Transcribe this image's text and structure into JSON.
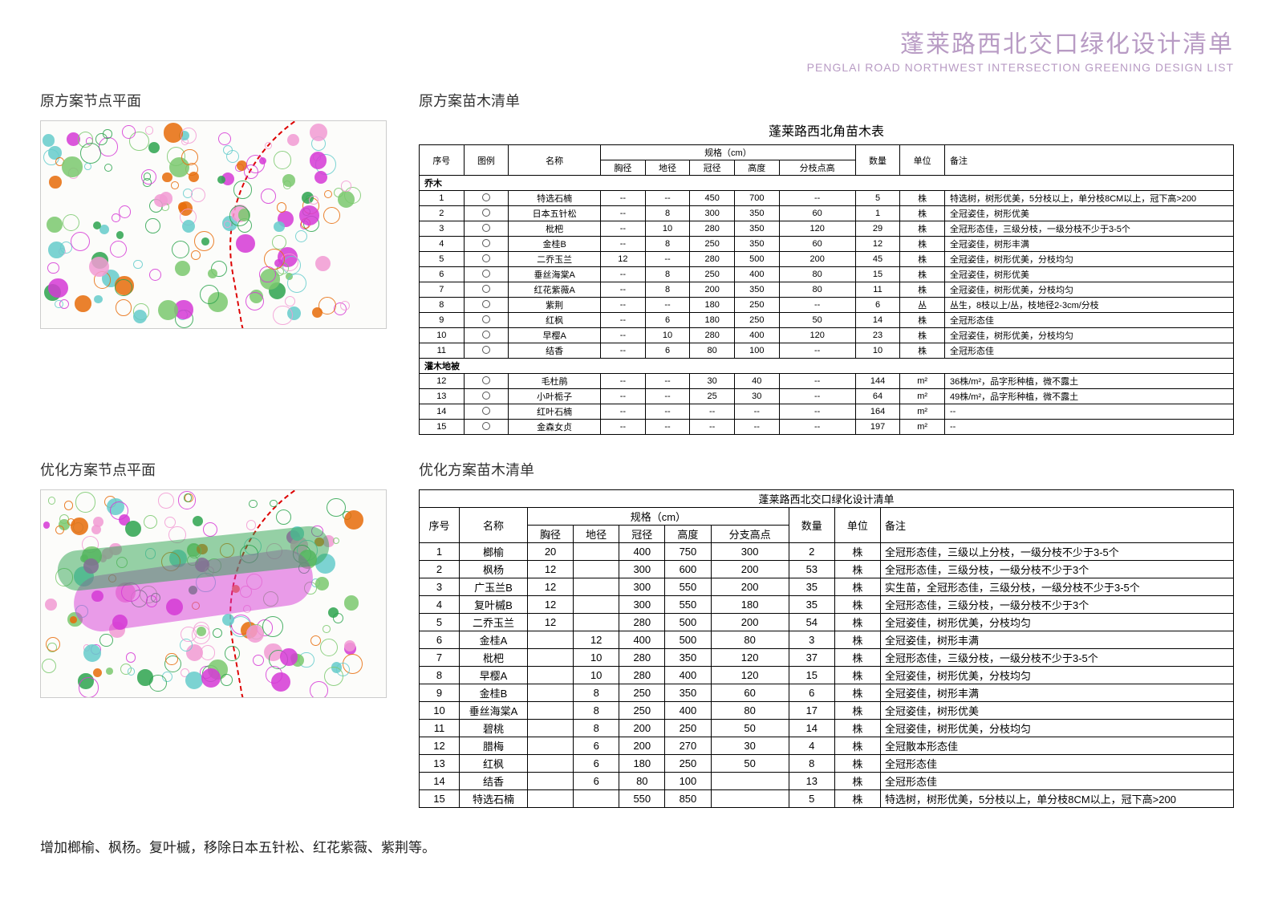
{
  "header": {
    "cn": "蓬莱路西北交口绿化设计清单",
    "en": "PENGLAI ROAD NORTHWEST INTERSECTION GREENING DESIGN LIST"
  },
  "sections": {
    "original_plan_title": "原方案节点平面",
    "original_list_title": "原方案苗木清单",
    "optimized_plan_title": "优化方案节点平面",
    "optimized_list_title": "优化方案苗木清单"
  },
  "table1": {
    "title": "蓬莱路西北角苗木表",
    "columns": {
      "seq": "序号",
      "symbol": "图例",
      "name": "名称",
      "spec_group": "规格（cm）",
      "xj": "胸径",
      "dj": "地径",
      "gj": "冠径",
      "gd": "高度",
      "fz": "分枝点高",
      "qty": "数量",
      "unit": "单位",
      "remarks": "备注"
    },
    "categories": {
      "trees": "乔木",
      "shrubs": "灌木地被"
    },
    "trees": [
      {
        "n": "1",
        "name": "特选石楠",
        "xj": "--",
        "dj": "--",
        "gj": "450",
        "gd": "700",
        "fz": "--",
        "qty": "5",
        "unit": "株",
        "rem": "特选树，树形优美，5分枝以上，单分枝8CM以上，冠下高>200"
      },
      {
        "n": "2",
        "name": "日本五针松",
        "xj": "--",
        "dj": "8",
        "gj": "300",
        "gd": "350",
        "fz": "60",
        "qty": "1",
        "unit": "株",
        "rem": "全冠姿佳，树形优美"
      },
      {
        "n": "3",
        "name": "枇杷",
        "xj": "--",
        "dj": "10",
        "gj": "280",
        "gd": "350",
        "fz": "120",
        "qty": "29",
        "unit": "株",
        "rem": "全冠形态佳，三级分枝，一级分枝不少于3-5个"
      },
      {
        "n": "4",
        "name": "金桂B",
        "xj": "--",
        "dj": "8",
        "gj": "250",
        "gd": "350",
        "fz": "60",
        "qty": "12",
        "unit": "株",
        "rem": "全冠姿佳，树形丰满"
      },
      {
        "n": "5",
        "name": "二乔玉兰",
        "xj": "12",
        "dj": "--",
        "gj": "280",
        "gd": "500",
        "fz": "200",
        "qty": "45",
        "unit": "株",
        "rem": "全冠姿佳，树形优美，分枝均匀"
      },
      {
        "n": "6",
        "name": "垂丝海棠A",
        "xj": "--",
        "dj": "8",
        "gj": "250",
        "gd": "400",
        "fz": "80",
        "qty": "15",
        "unit": "株",
        "rem": "全冠姿佳，树形优美"
      },
      {
        "n": "7",
        "name": "红花紫薇A",
        "xj": "--",
        "dj": "8",
        "gj": "200",
        "gd": "350",
        "fz": "80",
        "qty": "11",
        "unit": "株",
        "rem": "全冠姿佳，树形优美，分枝均匀"
      },
      {
        "n": "8",
        "name": "紫荆",
        "xj": "--",
        "dj": "--",
        "gj": "180",
        "gd": "250",
        "fz": "--",
        "qty": "6",
        "unit": "丛",
        "rem": "丛生，8枝以上/丛，枝地径2-3cm/分枝"
      },
      {
        "n": "9",
        "name": "红枫",
        "xj": "--",
        "dj": "6",
        "gj": "180",
        "gd": "250",
        "fz": "50",
        "qty": "14",
        "unit": "株",
        "rem": "全冠形态佳"
      },
      {
        "n": "10",
        "name": "早樱A",
        "xj": "--",
        "dj": "10",
        "gj": "280",
        "gd": "400",
        "fz": "120",
        "qty": "23",
        "unit": "株",
        "rem": "全冠姿佳，树形优美，分枝均匀"
      },
      {
        "n": "11",
        "name": "结香",
        "xj": "--",
        "dj": "6",
        "gj": "80",
        "gd": "100",
        "fz": "--",
        "qty": "10",
        "unit": "株",
        "rem": "全冠形态佳"
      }
    ],
    "shrubs": [
      {
        "n": "12",
        "name": "毛杜鹃",
        "xj": "--",
        "dj": "--",
        "gj": "30",
        "gd": "40",
        "fz": "--",
        "qty": "144",
        "unit": "m²",
        "rem": "36株/m²，品字形种植，微不露土"
      },
      {
        "n": "13",
        "name": "小叶栀子",
        "xj": "--",
        "dj": "--",
        "gj": "25",
        "gd": "30",
        "fz": "--",
        "qty": "64",
        "unit": "m²",
        "rem": "49株/m²，品字形种植，微不露土"
      },
      {
        "n": "14",
        "name": "红叶石楠",
        "xj": "--",
        "dj": "--",
        "gj": "--",
        "gd": "--",
        "fz": "--",
        "qty": "164",
        "unit": "m²",
        "rem": "--"
      },
      {
        "n": "15",
        "name": "金森女贞",
        "xj": "--",
        "dj": "--",
        "gj": "--",
        "gd": "--",
        "fz": "--",
        "qty": "197",
        "unit": "m²",
        "rem": "--"
      }
    ]
  },
  "table2": {
    "title": "蓬莱路西北交口绿化设计清单",
    "columns": {
      "seq": "序号",
      "name": "名称",
      "spec_group": "规格（cm）",
      "xj": "胸径",
      "dj": "地径",
      "gj": "冠径",
      "gd": "高度",
      "fz": "分支高点",
      "qty": "数量",
      "unit": "单位",
      "remarks": "备注"
    },
    "rows": [
      {
        "n": "1",
        "name": "榔榆",
        "xj": "20",
        "dj": "",
        "gj": "400",
        "gd": "750",
        "fz": "300",
        "qty": "2",
        "unit": "株",
        "rem": "全冠形态佳，三级以上分枝，一级分枝不少于3-5个"
      },
      {
        "n": "2",
        "name": "枫杨",
        "xj": "12",
        "dj": "",
        "gj": "300",
        "gd": "600",
        "fz": "200",
        "qty": "53",
        "unit": "株",
        "rem": "全冠形态佳，三级分枝，一级分枝不少于3个"
      },
      {
        "n": "3",
        "name": "广玉兰B",
        "xj": "12",
        "dj": "",
        "gj": "300",
        "gd": "550",
        "fz": "200",
        "qty": "35",
        "unit": "株",
        "rem": "实生苗，全冠形态佳，三级分枝，一级分枝不少于3-5个"
      },
      {
        "n": "4",
        "name": "复叶槭B",
        "xj": "12",
        "dj": "",
        "gj": "300",
        "gd": "550",
        "fz": "180",
        "qty": "35",
        "unit": "株",
        "rem": "全冠形态佳，三级分枝，一级分枝不少于3个"
      },
      {
        "n": "5",
        "name": "二乔玉兰",
        "xj": "12",
        "dj": "",
        "gj": "280",
        "gd": "500",
        "fz": "200",
        "qty": "54",
        "unit": "株",
        "rem": "全冠姿佳，树形优美，分枝均匀"
      },
      {
        "n": "6",
        "name": "金桂A",
        "xj": "",
        "dj": "12",
        "gj": "400",
        "gd": "500",
        "fz": "80",
        "qty": "3",
        "unit": "株",
        "rem": "全冠姿佳，树形丰满"
      },
      {
        "n": "7",
        "name": "枇杷",
        "xj": "",
        "dj": "10",
        "gj": "280",
        "gd": "350",
        "fz": "120",
        "qty": "37",
        "unit": "株",
        "rem": "全冠形态佳，三级分枝，一级分枝不少于3-5个"
      },
      {
        "n": "8",
        "name": "早樱A",
        "xj": "",
        "dj": "10",
        "gj": "280",
        "gd": "400",
        "fz": "120",
        "qty": "15",
        "unit": "株",
        "rem": "全冠姿佳，树形优美，分枝均匀"
      },
      {
        "n": "9",
        "name": "金桂B",
        "xj": "",
        "dj": "8",
        "gj": "250",
        "gd": "350",
        "fz": "60",
        "qty": "6",
        "unit": "株",
        "rem": "全冠姿佳，树形丰满"
      },
      {
        "n": "10",
        "name": "垂丝海棠A",
        "xj": "",
        "dj": "8",
        "gj": "250",
        "gd": "400",
        "fz": "80",
        "qty": "17",
        "unit": "株",
        "rem": "全冠姿佳，树形优美"
      },
      {
        "n": "11",
        "name": "碧桃",
        "xj": "",
        "dj": "8",
        "gj": "200",
        "gd": "250",
        "fz": "50",
        "qty": "14",
        "unit": "株",
        "rem": "全冠姿佳，树形优美，分枝均匀"
      },
      {
        "n": "12",
        "name": "腊梅",
        "xj": "",
        "dj": "6",
        "gj": "200",
        "gd": "270",
        "fz": "30",
        "qty": "4",
        "unit": "株",
        "rem": "全冠散本形态佳"
      },
      {
        "n": "13",
        "name": "红枫",
        "xj": "",
        "dj": "6",
        "gj": "180",
        "gd": "250",
        "fz": "50",
        "qty": "8",
        "unit": "株",
        "rem": "全冠形态佳"
      },
      {
        "n": "14",
        "name": "结香",
        "xj": "",
        "dj": "6",
        "gj": "80",
        "gd": "100",
        "fz": "",
        "qty": "13",
        "unit": "株",
        "rem": "全冠形态佳"
      },
      {
        "n": "15",
        "name": "特选石楠",
        "xj": "",
        "dj": "",
        "gj": "550",
        "gd": "850",
        "fz": "",
        "qty": "5",
        "unit": "株",
        "rem": "特选树，树形优美，5分枝以上，单分枝8CM以上，冠下高>200"
      }
    ]
  },
  "footer_note": "增加榔榆、枫杨。复叶槭，移除日本五针松、红花紫薇、紫荆等。",
  "plan_colors": {
    "green1": "#2ea44f",
    "green2": "#7bc96f",
    "magenta": "#d63ad6",
    "orange": "#e86c0a",
    "red": "#d00000",
    "cyan": "#66cccc",
    "pink": "#f29bd4"
  }
}
